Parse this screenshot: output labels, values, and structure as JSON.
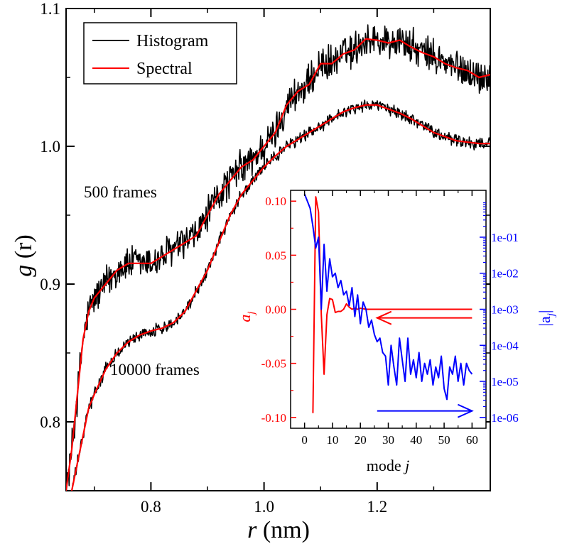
{
  "chart_data": [
    {
      "type": "line",
      "id": "main",
      "xlabel": {
        "italic": "r",
        "rest": " (nm)"
      },
      "ylabel": {
        "italic": "g",
        "rest": " (r)"
      },
      "xlim": [
        0.65,
        1.4
      ],
      "ylim": [
        0.75,
        1.1
      ],
      "xticks": [
        0.8,
        1.0,
        1.2
      ],
      "xtick_labels": [
        "0.8",
        "1.0",
        "1.2"
      ],
      "yticks": [
        0.8,
        0.9,
        1.0,
        1.1
      ],
      "ytick_labels": [
        "0.8",
        "0.9",
        "1.0",
        "1.1"
      ],
      "legend": [
        {
          "label": "Histogram",
          "color": "#000000"
        },
        {
          "label": "Spectral",
          "color": "#ff0000"
        }
      ],
      "annotations": [
        "500 frames",
        "10000 frames"
      ],
      "series": [
        {
          "name": "Spectral (500 frames)",
          "color": "#ff0000",
          "noise": 0.012,
          "x": [
            0.65,
            0.66,
            0.67,
            0.68,
            0.69,
            0.7,
            0.72,
            0.74,
            0.76,
            0.78,
            0.8,
            0.82,
            0.84,
            0.86,
            0.88,
            0.9,
            0.92,
            0.94,
            0.96,
            0.98,
            1.0,
            1.02,
            1.04,
            1.06,
            1.08,
            1.1,
            1.12,
            1.14,
            1.16,
            1.18,
            1.2,
            1.22,
            1.24,
            1.26,
            1.28,
            1.3,
            1.32,
            1.34,
            1.36,
            1.38,
            1.4
          ],
          "y": [
            0.75,
            0.78,
            0.82,
            0.86,
            0.88,
            0.89,
            0.9,
            0.91,
            0.915,
            0.915,
            0.915,
            0.92,
            0.925,
            0.93,
            0.935,
            0.95,
            0.965,
            0.975,
            0.985,
            0.99,
            1.0,
            1.01,
            1.03,
            1.04,
            1.045,
            1.06,
            1.06,
            1.067,
            1.07,
            1.078,
            1.077,
            1.075,
            1.077,
            1.072,
            1.068,
            1.065,
            1.06,
            1.057,
            1.055,
            1.05,
            1.052
          ]
        },
        {
          "name": "Spectral (10000 frames)",
          "color": "#ff0000",
          "noise": 0.004,
          "x": [
            0.66,
            0.67,
            0.68,
            0.69,
            0.7,
            0.72,
            0.74,
            0.76,
            0.78,
            0.8,
            0.82,
            0.84,
            0.86,
            0.88,
            0.9,
            0.92,
            0.94,
            0.96,
            0.98,
            1.0,
            1.02,
            1.04,
            1.06,
            1.08,
            1.1,
            1.12,
            1.14,
            1.16,
            1.18,
            1.2,
            1.22,
            1.24,
            1.26,
            1.28,
            1.3,
            1.32,
            1.34,
            1.36,
            1.38,
            1.4
          ],
          "y": [
            0.75,
            0.77,
            0.79,
            0.81,
            0.82,
            0.838,
            0.85,
            0.858,
            0.863,
            0.866,
            0.868,
            0.872,
            0.88,
            0.895,
            0.91,
            0.93,
            0.95,
            0.965,
            0.975,
            0.985,
            0.993,
            1.0,
            1.005,
            1.01,
            1.015,
            1.02,
            1.025,
            1.028,
            1.03,
            1.03,
            1.027,
            1.024,
            1.02,
            1.015,
            1.01,
            1.007,
            1.004,
            1.003,
            1.002,
            1.002
          ]
        }
      ]
    },
    {
      "type": "line",
      "id": "inset",
      "xlabel": {
        "text": "mode ",
        "italic": "j"
      },
      "ylabel_left": {
        "base": "a",
        "sub": "j"
      },
      "ylabel_right": {
        "base": "|a",
        "sub": "j",
        "close": "|"
      },
      "xlim": [
        -5,
        65
      ],
      "ylim_left": [
        -0.11,
        0.11
      ],
      "ylim_right_log10": [
        -6.3,
        0.3
      ],
      "xticks": [
        0,
        10,
        20,
        30,
        40,
        50,
        60
      ],
      "xtick_labels": [
        "0",
        "10",
        "20",
        "30",
        "40",
        "50",
        "60"
      ],
      "yticks_left": [
        -0.1,
        -0.05,
        0.0,
        0.05,
        0.1
      ],
      "ytick_labels_left": [
        "-0.10",
        "-0.05",
        "0.00",
        "0.05",
        "0.10"
      ],
      "yticks_right_log10": [
        -6,
        -5,
        -4,
        -3,
        -2,
        -1
      ],
      "ytick_labels_right": [
        "1e-06",
        "1e-05",
        "1e-04",
        "1e-03",
        "1e-02",
        "1e-01"
      ],
      "left_color": "#ff0000",
      "right_color": "#0000ff",
      "arrows": [
        {
          "name": "arrow-left-axis",
          "color": "#ff0000",
          "direction": "left",
          "x": [
            26,
            60
          ],
          "y_left": -0.008
        },
        {
          "name": "arrow-right-axis",
          "color": "#0000ff",
          "direction": "right",
          "x": [
            26,
            60
          ],
          "y_left": -0.094
        }
      ],
      "series": [
        {
          "name": "a_j",
          "axis": "left",
          "color": "#ff0000",
          "x": [
            3,
            4,
            5,
            6,
            7,
            8,
            9,
            10,
            11,
            12,
            13,
            14,
            15,
            16,
            17,
            18,
            19,
            20,
            22,
            25,
            30,
            35,
            40,
            45,
            50,
            55,
            60
          ],
          "y": [
            -0.096,
            0.104,
            0.09,
            -0.005,
            -0.06,
            -0.005,
            0.01,
            0.009,
            -0.003,
            -0.002,
            -0.002,
            0.0,
            0.005,
            0.002,
            0.0,
            0.001,
            0.0,
            0.001,
            0.0,
            0.0,
            0.0,
            0.0,
            0.0,
            0.0,
            0.0,
            0.0,
            0.0
          ]
        },
        {
          "name": "|a_j|",
          "axis": "right",
          "color": "#0000ff",
          "x": [
            0,
            1,
            2,
            3,
            4,
            5,
            6,
            7,
            8,
            9,
            10,
            11,
            12,
            13,
            14,
            15,
            16,
            17,
            18,
            19,
            20,
            21,
            22,
            23,
            24,
            25,
            26,
            27,
            28,
            29,
            30,
            31,
            32,
            33,
            34,
            35,
            36,
            37,
            38,
            39,
            40,
            41,
            42,
            43,
            44,
            45,
            46,
            47,
            48,
            49,
            50,
            51,
            52,
            53,
            54,
            55,
            56,
            57,
            58,
            59,
            60
          ],
          "y_log10": [
            0.2,
            0.0,
            -0.2,
            -0.7,
            -1.3,
            -1.0,
            -3.0,
            -1.2,
            -2.5,
            -1.6,
            -2.1,
            -2.0,
            -2.4,
            -2.2,
            -2.6,
            -2.5,
            -2.9,
            -2.4,
            -3.2,
            -2.6,
            -3.4,
            -2.8,
            -3.0,
            -3.5,
            -3.3,
            -3.7,
            -3.9,
            -3.8,
            -4.2,
            -4.3,
            -5.1,
            -4.0,
            -4.6,
            -5.1,
            -3.8,
            -4.4,
            -5.0,
            -3.8,
            -4.8,
            -4.4,
            -4.9,
            -4.2,
            -5.0,
            -4.5,
            -4.8,
            -4.4,
            -5.1,
            -4.6,
            -4.9,
            -4.3,
            -5.2,
            -5.5,
            -4.6,
            -4.8,
            -4.3,
            -5.0,
            -4.5,
            -5.1,
            -4.5,
            -4.7,
            -4.8
          ]
        }
      ]
    }
  ]
}
